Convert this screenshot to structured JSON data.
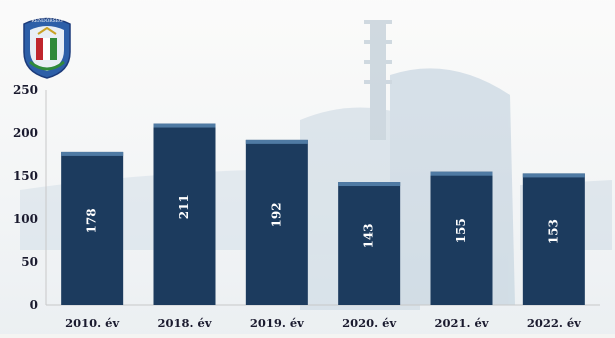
{
  "chart_data": {
    "type": "bar",
    "categories": [
      "2010. év",
      "2018. év",
      "2019. év",
      "2020. év",
      "2021. év",
      "2022. év"
    ],
    "values": [
      178,
      211,
      192,
      143,
      155,
      153
    ],
    "data_labels": [
      "178",
      "211",
      "192",
      "143",
      "155",
      "153"
    ],
    "title": "",
    "xlabel": "",
    "ylabel": "",
    "ylim": [
      0,
      250
    ],
    "yticks": [
      0,
      50,
      100,
      150,
      200,
      250
    ],
    "grid": false,
    "legend": "none"
  },
  "colors": {
    "bar": "#1c3b5e",
    "bar_top": "#4f7aa3",
    "label": "#ffffff",
    "axis_text": "#1a1a2e",
    "background": "#f4f4f2",
    "building": "#c9d7e2"
  },
  "logo": {
    "icon": "police-crest-icon",
    "text": "RENDŐRSÉG"
  }
}
